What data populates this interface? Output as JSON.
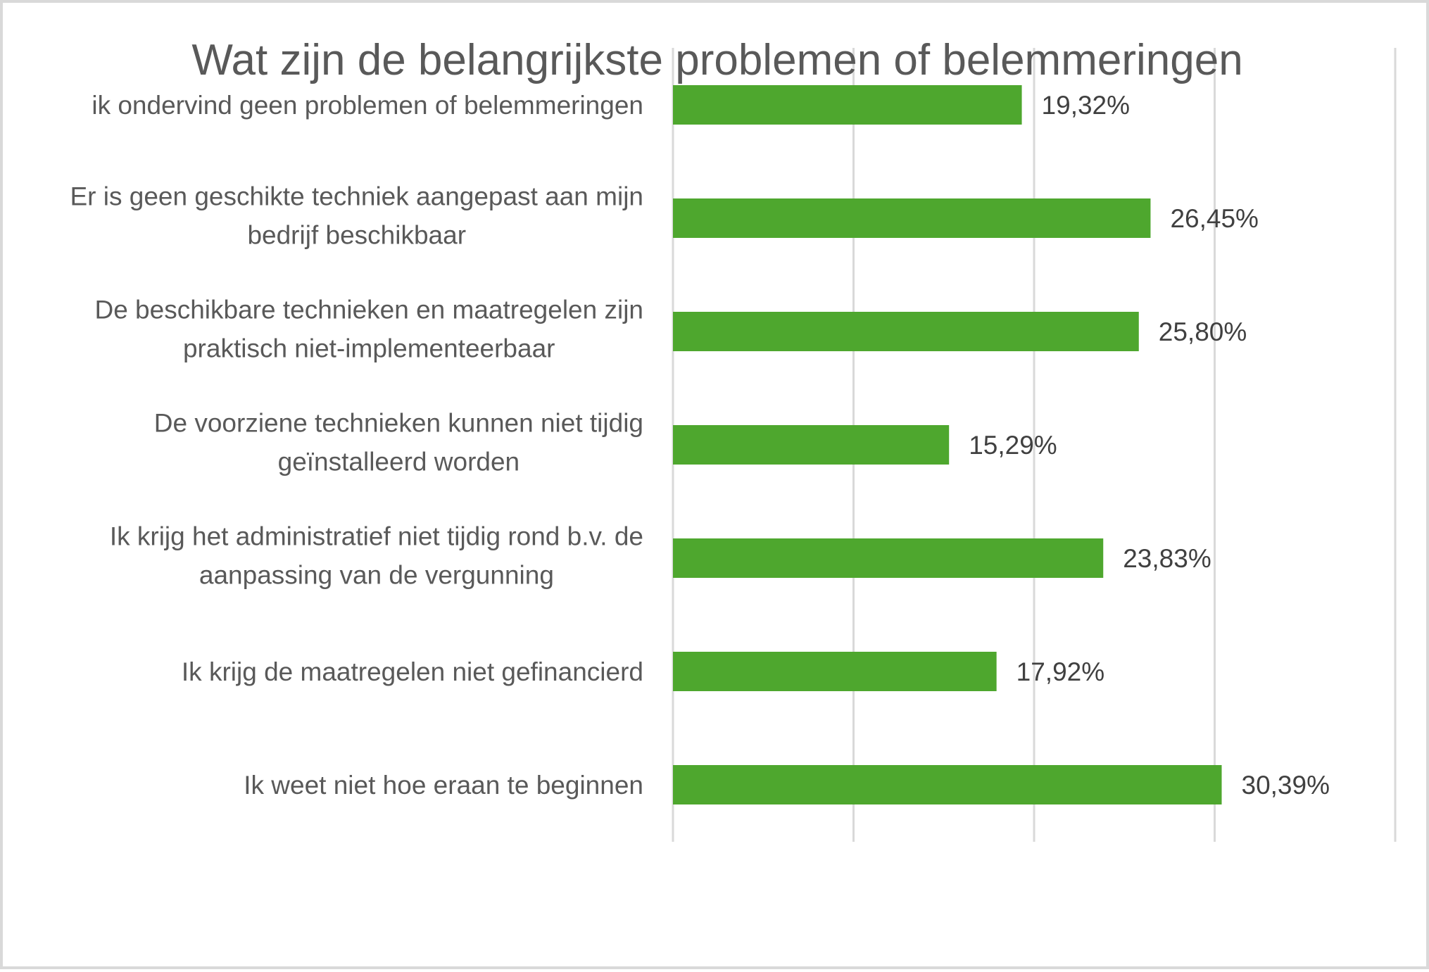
{
  "chart_data": {
    "type": "bar",
    "orientation": "horizontal",
    "title": "Wat zijn de belangrijkste problemen of belemmeringen",
    "xlabel": "",
    "ylabel": "",
    "categories": [
      [
        "ik ondervind geen problemen of belemmeringen"
      ],
      [
        "Er is geen geschikte techniek aangepast aan mijn",
        "bedrijf beschikbaar"
      ],
      [
        "De beschikbare technieken en maatregelen zijn",
        "praktisch niet-implementeerbaar"
      ],
      [
        "De voorziene technieken kunnen niet tijdig",
        "geïnstalleerd worden"
      ],
      [
        "Ik krijg het administratief niet tijdig rond b.v. de",
        "aanpassing van de vergunning"
      ],
      [
        "Ik krijg de maatregelen niet gefinancierd"
      ],
      [
        "Ik weet niet hoe eraan te beginnen"
      ]
    ],
    "values": [
      19.32,
      26.45,
      25.8,
      15.29,
      23.83,
      17.92,
      30.39
    ],
    "value_labels": [
      "19,32%",
      "26,45%",
      "25,80%",
      "15,29%",
      "23,83%",
      "17,92%",
      "30,39%"
    ],
    "xlim": [
      0,
      40
    ],
    "x_gridlines": [
      0,
      10,
      20,
      30,
      40
    ],
    "x_tick_labels_shown": false,
    "grid": true,
    "legend": "none",
    "bar_color": "#4ea72e",
    "gridline_color": "#d9d9d9",
    "text_color": "#595959"
  }
}
